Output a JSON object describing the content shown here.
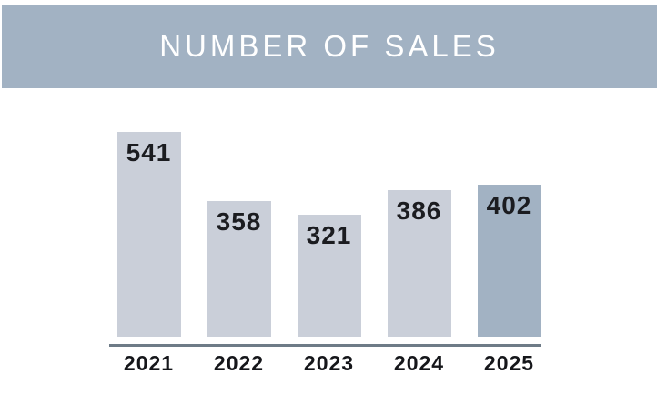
{
  "chart_data": {
    "type": "bar",
    "title": "NUMBER OF SALES",
    "categories": [
      "2021",
      "2022",
      "2023",
      "2024",
      "2025"
    ],
    "values": [
      541,
      358,
      321,
      386,
      402
    ],
    "value_labels": [
      "541",
      "358",
      "321",
      "386",
      "402"
    ],
    "value_label_position": "inside-top",
    "xlabel": "",
    "ylabel": "",
    "ylim": [
      0,
      541
    ],
    "grid": false,
    "legend": false,
    "highlight_index": 4
  },
  "colors": {
    "background": "#ffffff",
    "header_bg": "#a2b2c3",
    "title_text": "#ffffff",
    "bar_default": "#cacfd9",
    "bar_highlight": "#a2b2c3",
    "axis_line": "#6e7b87",
    "value_label": "#1b1c20",
    "category_label": "#15161a"
  }
}
